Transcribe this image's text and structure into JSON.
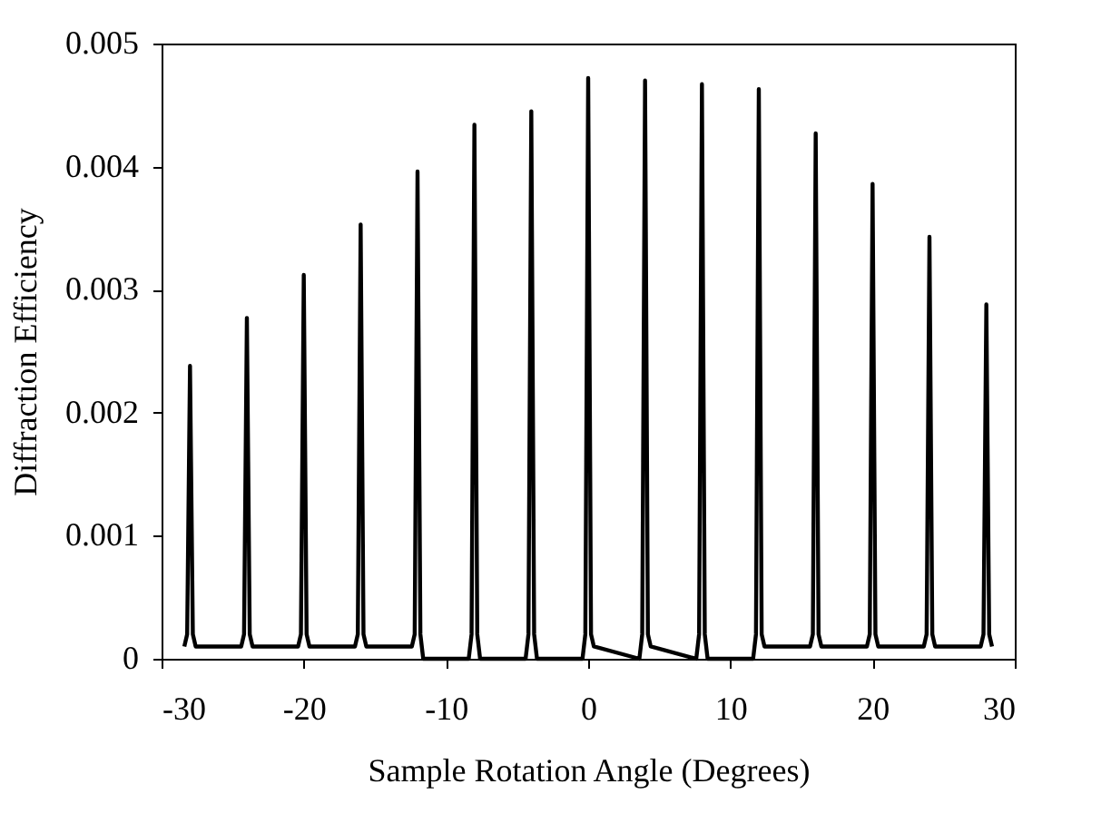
{
  "chart_data": {
    "type": "line",
    "xlabel": "Sample Rotation Angle (Degrees)",
    "ylabel": "Diffraction Efficiency",
    "xlim": [
      -30,
      30
    ],
    "xticks": [
      -30,
      -20,
      -10,
      0,
      10,
      20,
      30
    ],
    "ylim": [
      0,
      0.005
    ],
    "yticks": [
      0,
      0.001,
      0.002,
      0.003,
      0.004,
      0.005
    ],
    "grid": false,
    "marker": "none",
    "line_style": "solid",
    "series": [
      {
        "color": "#000000",
        "x": [
          -28.4,
          -28.2,
          -28,
          -27.8,
          -27.6,
          -24.4,
          -24.2,
          -24,
          -23.8,
          -23.6,
          -20.4,
          -20.2,
          -20,
          -19.8,
          -19.6,
          -16.4,
          -16.2,
          -16,
          -15.8,
          -15.6,
          -12.4,
          -12.2,
          -12,
          -11.8,
          -11.6,
          -8.4,
          -8.2,
          -8,
          -7.8,
          -7.6,
          -4.4,
          -4.2,
          -4,
          -3.8,
          -3.6,
          -0.4,
          -0.2,
          0,
          0.2,
          0.4,
          3.6,
          3.8,
          4,
          4.2,
          4.4,
          7.6,
          7.8,
          8,
          8.2,
          8.4,
          11.6,
          11.8,
          12,
          12.2,
          12.4,
          15.6,
          15.8,
          16,
          16.2,
          16.4,
          19.6,
          19.8,
          20,
          20.2,
          20.4,
          23.6,
          23.8,
          24,
          24.2,
          24.4,
          27.6,
          27.8,
          28,
          28.2,
          28.4
        ],
        "values": [
          0.0001,
          0.0002,
          0.00238,
          0.0002,
          0.0001,
          0.0001,
          0.0002,
          0.00277,
          0.0002,
          0.0001,
          0.0001,
          0.0002,
          0.00312,
          0.0002,
          0.0001,
          0.0001,
          0.0002,
          0.00353,
          0.0002,
          0.0001,
          0.0001,
          0.0002,
          0.00396,
          0.0002,
          0.0,
          0.0,
          0.0002,
          0.00434,
          0.0002,
          0.0,
          0.0,
          0.0002,
          0.00445,
          0.0002,
          0.0,
          0.0,
          0.0002,
          0.00472,
          0.0002,
          0.0001,
          0.0,
          0.0002,
          0.0047,
          0.0002,
          0.0001,
          0.0,
          0.0002,
          0.00467,
          0.0002,
          0.0,
          0.0,
          0.0002,
          0.00463,
          0.0002,
          0.0001,
          0.0001,
          0.0002,
          0.00427,
          0.0002,
          0.0001,
          0.0001,
          0.0002,
          0.00386,
          0.0002,
          0.0001,
          0.0001,
          0.0002,
          0.00343,
          0.0002,
          0.0001,
          0.0001,
          0.0002,
          0.00288,
          0.0002,
          0.0001
        ]
      }
    ]
  }
}
